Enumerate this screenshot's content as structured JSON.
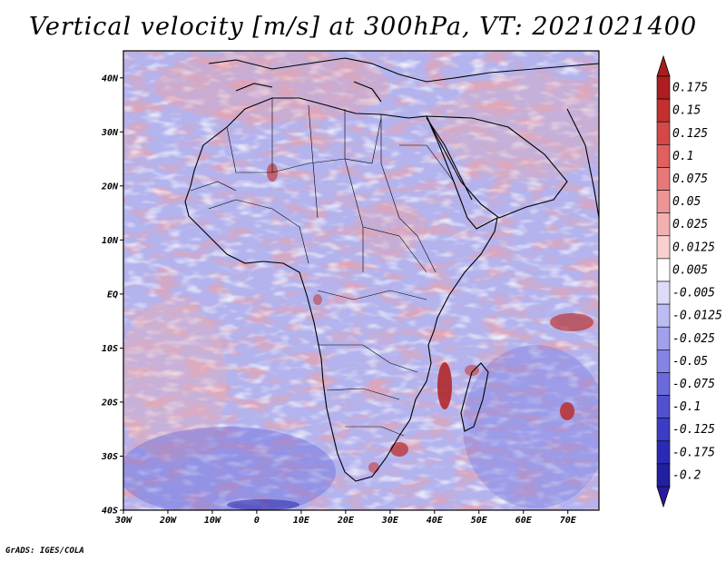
{
  "title": "Vertical velocity [m/s] at 300hPa, VT: 2021021400",
  "credit": "GrADS: IGES/COLA",
  "map": {
    "lon_range": [
      -30,
      77
    ],
    "lat_range": [
      -40,
      45
    ],
    "lon_ticks": [
      {
        "value": -30,
        "label": "30W"
      },
      {
        "value": -20,
        "label": "20W"
      },
      {
        "value": -10,
        "label": "10W"
      },
      {
        "value": 0,
        "label": "0"
      },
      {
        "value": 10,
        "label": "10E"
      },
      {
        "value": 20,
        "label": "20E"
      },
      {
        "value": 30,
        "label": "30E"
      },
      {
        "value": 40,
        "label": "40E"
      },
      {
        "value": 50,
        "label": "50E"
      },
      {
        "value": 60,
        "label": "60E"
      },
      {
        "value": 70,
        "label": "70E"
      }
    ],
    "lat_ticks": [
      {
        "value": 40,
        "label": "40N"
      },
      {
        "value": 30,
        "label": "30N"
      },
      {
        "value": 20,
        "label": "20N"
      },
      {
        "value": 10,
        "label": "10N"
      },
      {
        "value": 0,
        "label": "EQ"
      },
      {
        "value": -10,
        "label": "10S"
      },
      {
        "value": -20,
        "label": "20S"
      },
      {
        "value": -30,
        "label": "30S"
      },
      {
        "value": -40,
        "label": "40S"
      }
    ]
  },
  "colorbar": {
    "labels": [
      "0.175",
      "0.15",
      "0.125",
      "0.1",
      "0.075",
      "0.05",
      "0.025",
      "0.0125",
      "0.005",
      "-0.005",
      "-0.0125",
      "-0.025",
      "-0.05",
      "-0.075",
      "-0.1",
      "-0.125",
      "-0.175",
      "-0.2"
    ],
    "colors": [
      "#ae1d20",
      "#c23030",
      "#d44848",
      "#e06060",
      "#e87878",
      "#ee9494",
      "#f4b0b0",
      "#f9d0d0",
      "#ffffff",
      "#dcdcf8",
      "#bcbcf2",
      "#a0a0ec",
      "#8484e6",
      "#6a6adc",
      "#5050d0",
      "#3c3cc4",
      "#2a2ab6",
      "#2020a0"
    ],
    "max_color": "#a81e1e",
    "min_color": "#2a1aa0"
  }
}
